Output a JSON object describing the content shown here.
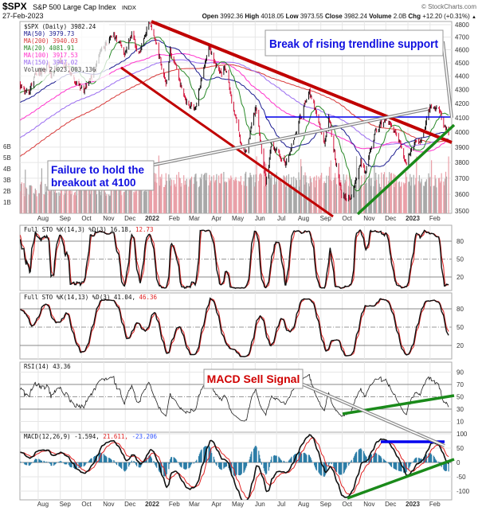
{
  "header": {
    "symbol": "$SPX",
    "name": "S&P 500 Large Cap Index",
    "exchange": "INDX",
    "copyright": "© StockCharts.com",
    "date": "27-Feb-2023",
    "open_label": "Open",
    "open": "3992.36",
    "high_label": "High",
    "high": "4018.05",
    "low_label": "Low",
    "low": "3973.55",
    "close_label": "Close",
    "close": "3982.24",
    "volume_label": "Volume",
    "volume": "2.0B",
    "chg_label": "Chg",
    "chg": "+12.20 (+0.31%)",
    "chg_arrow": "▲"
  },
  "legend": {
    "price": "$SPX (Daily) 3982.24",
    "ma50": "MA(50) 3979.73",
    "ma200": "MA(200) 3940.03",
    "ma20": "MA(20) 4081.91",
    "ma100": "MA(100) 3917.53",
    "ma150": "MA(150) 3947.02",
    "volume": "Volume 2,023,003,136"
  },
  "indicator_labels": {
    "sto1": "Full STO %K(14,3) %D(3) 16.18,",
    "sto1_d": "12.73",
    "sto2": "Full STO %K(14,13) %D(3) 41.04,",
    "sto2_d": "46.36",
    "rsi": "RSI(14) 43.36",
    "macd": "MACD(12,26,9) -1.594,",
    "macd_signal": "21.611,",
    "macd_hist": "-23.206"
  },
  "annotations": {
    "break": "Break of rising trendline support",
    "failure_line1": "Failure to hold the",
    "failure_line2": "breakout at 4100",
    "macd_sell": "MACD Sell Signal"
  },
  "colors": {
    "up": "#111111",
    "down": "#d4143c",
    "ma20": "#2a8a2a",
    "ma50": "#1c1c90",
    "ma100": "#ff33cc",
    "ma150": "#9a6cf0",
    "ma200": "#d83a3a",
    "trend_red": "#c00000",
    "trend_green": "#1a8a1a",
    "level_blue": "#0000ee",
    "annotation_blue": "#1010e0",
    "annotation_red": "#d00000",
    "macd_hist": "#2b7ca6"
  },
  "chart_data": [
    {
      "type": "ohlc",
      "panel": "price",
      "yscale": "log",
      "ylim": [
        3500,
        4800
      ],
      "yticks": [
        "4800",
        "4700",
        "4600",
        "4500",
        "4400",
        "4300",
        "4200",
        "4100",
        "4000",
        "3900",
        "3800",
        "3700",
        "3600",
        "3500"
      ],
      "volume_ticks": [
        "6B",
        "5B",
        "4B",
        "3B",
        "2B",
        "1B"
      ],
      "x_ticks": [
        {
          "date": "2021-08-01",
          "label": "Aug"
        },
        {
          "date": "2021-09-01",
          "label": "Sep"
        },
        {
          "date": "2021-10-01",
          "label": "Oct"
        },
        {
          "date": "2021-11-01",
          "label": "Nov"
        },
        {
          "date": "2021-12-01",
          "label": "Dec"
        },
        {
          "date": "2022-01-01",
          "label": "2022"
        },
        {
          "date": "2022-02-01",
          "label": "Feb"
        },
        {
          "date": "2022-03-01",
          "label": "Mar"
        },
        {
          "date": "2022-04-01",
          "label": "Apr"
        },
        {
          "date": "2022-05-01",
          "label": "May"
        },
        {
          "date": "2022-06-01",
          "label": "Jun"
        },
        {
          "date": "2022-07-01",
          "label": "Jul"
        },
        {
          "date": "2022-08-01",
          "label": "Aug"
        },
        {
          "date": "2022-09-01",
          "label": "Sep"
        },
        {
          "date": "2022-10-01",
          "label": "Oct"
        },
        {
          "date": "2022-11-01",
          "label": "Nov"
        },
        {
          "date": "2022-12-01",
          "label": "Dec"
        },
        {
          "date": "2023-01-01",
          "label": "2023"
        },
        {
          "date": "2023-02-01",
          "label": "Feb"
        }
      ],
      "close_keypoints": [
        [
          "2021-07-07",
          4320
        ],
        [
          "2021-07-19",
          4260
        ],
        [
          "2021-07-29",
          4420
        ],
        [
          "2021-08-16",
          4480
        ],
        [
          "2021-08-19",
          4400
        ],
        [
          "2021-09-02",
          4536
        ],
        [
          "2021-09-20",
          4358
        ],
        [
          "2021-10-04",
          4300
        ],
        [
          "2021-10-12",
          4350
        ],
        [
          "2021-11-02",
          4630
        ],
        [
          "2021-11-18",
          4705
        ],
        [
          "2021-11-30",
          4567
        ],
        [
          "2021-12-10",
          4712
        ],
        [
          "2021-12-20",
          4568
        ],
        [
          "2022-01-03",
          4796
        ],
        [
          "2022-01-13",
          4660
        ],
        [
          "2022-01-27",
          4326
        ],
        [
          "2022-02-02",
          4590
        ],
        [
          "2022-02-23",
          4225
        ],
        [
          "2022-03-08",
          4170
        ],
        [
          "2022-03-29",
          4631
        ],
        [
          "2022-04-12",
          4397
        ],
        [
          "2022-04-20",
          4460
        ],
        [
          "2022-05-02",
          4155
        ],
        [
          "2022-05-12",
          3930
        ],
        [
          "2022-05-20",
          3900
        ],
        [
          "2022-06-02",
          4176
        ],
        [
          "2022-06-16",
          3666
        ],
        [
          "2022-06-24",
          3911
        ],
        [
          "2022-07-14",
          3790
        ],
        [
          "2022-08-16",
          4305
        ],
        [
          "2022-09-06",
          3908
        ],
        [
          "2022-09-12",
          4110
        ],
        [
          "2022-09-30",
          3585
        ],
        [
          "2022-10-12",
          3577
        ],
        [
          "2022-10-27",
          3807
        ],
        [
          "2022-11-03",
          3719
        ],
        [
          "2022-11-15",
          3992
        ],
        [
          "2022-11-30",
          4080
        ],
        [
          "2022-12-13",
          4019
        ],
        [
          "2022-12-28",
          3783
        ],
        [
          "2023-01-06",
          3895
        ],
        [
          "2023-01-18",
          3928
        ],
        [
          "2023-02-02",
          4180
        ],
        [
          "2023-02-15",
          4147
        ],
        [
          "2023-02-23",
          4012
        ],
        [
          "2023-02-27",
          3982
        ]
      ],
      "moving_averages": [
        20,
        50,
        100,
        150,
        200
      ],
      "trendlines": [
        {
          "name": "falling resistance",
          "color": "red"
        },
        {
          "name": "falling channel support",
          "color": "red"
        },
        {
          "name": "rising support",
          "color": "green"
        },
        {
          "name": "4100 level",
          "value": 4100,
          "color": "blue"
        }
      ]
    },
    {
      "type": "line",
      "panel": "sto1",
      "ylim": [
        0,
        100
      ],
      "yticks": [
        "80",
        "50",
        "20"
      ],
      "k": 16.18,
      "d": 12.73
    },
    {
      "type": "line",
      "panel": "sto2",
      "ylim": [
        0,
        100
      ],
      "yticks": [
        "80",
        "50",
        "20"
      ],
      "k": 41.04,
      "d": 46.36
    },
    {
      "type": "line",
      "panel": "rsi",
      "ylim": [
        0,
        100
      ],
      "yticks": [
        "90",
        "70",
        "50",
        "30",
        "10"
      ],
      "value": 43.36
    },
    {
      "type": "line",
      "panel": "macd",
      "ylim": [
        -125,
        100
      ],
      "yticks": [
        "100",
        "50",
        "0",
        "-50",
        "-100"
      ],
      "macd": -1.594,
      "signal": 21.611,
      "hist": -23.206
    }
  ]
}
